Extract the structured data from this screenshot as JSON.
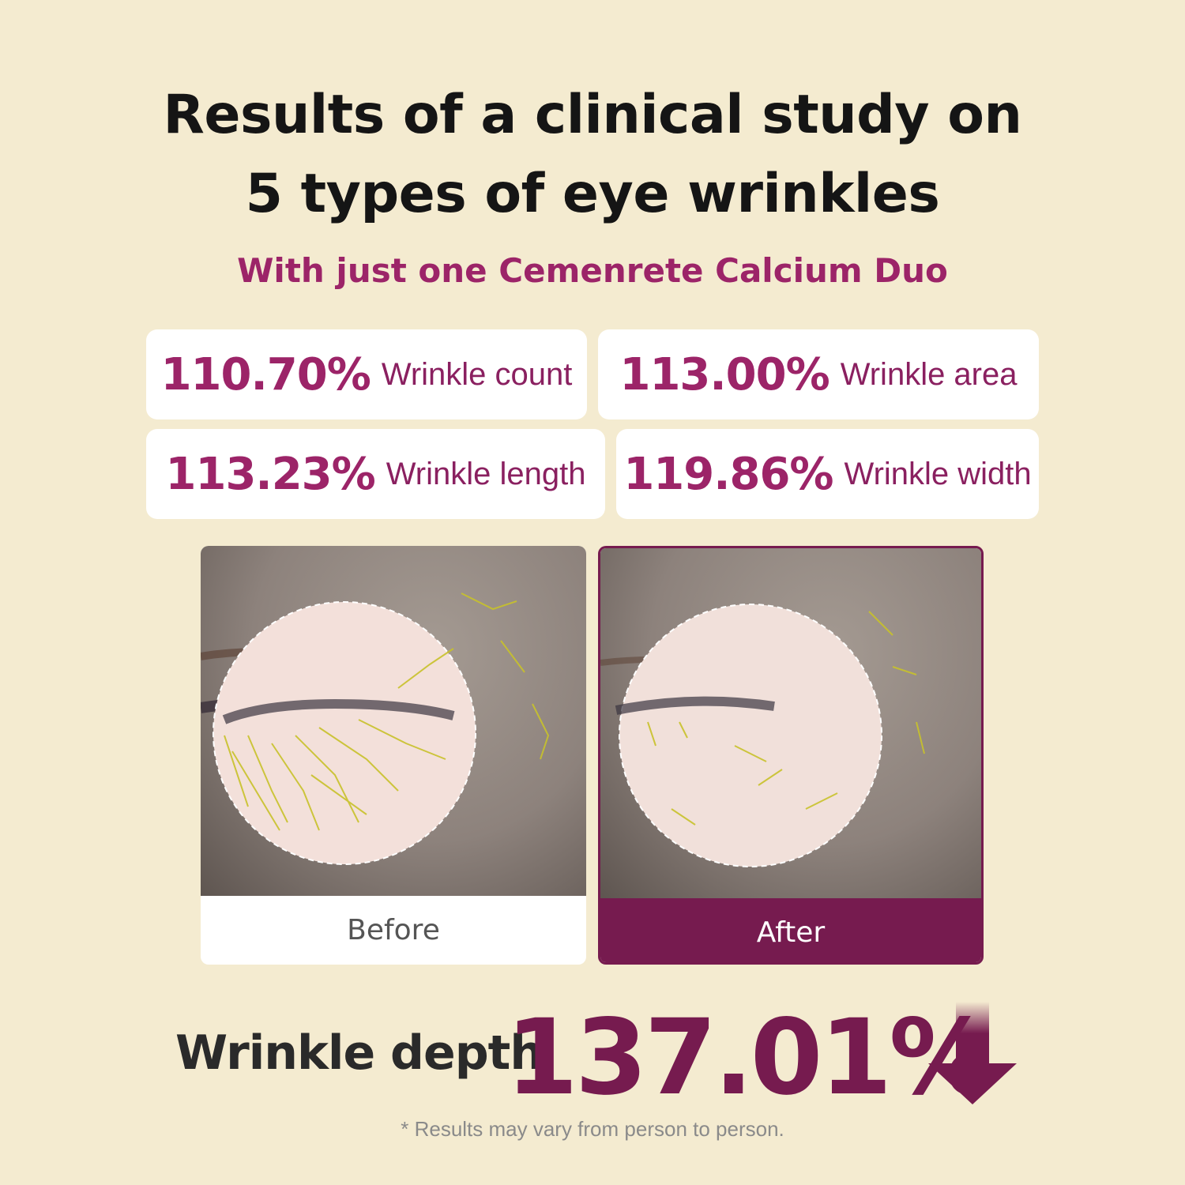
{
  "header": {
    "title_line1": "Results of a clinical study on",
    "title_line2": "5 types of eye wrinkles",
    "subtitle": "With just one Cemenrete Calcium Duo"
  },
  "stats": [
    {
      "value": "110.70%",
      "label": "Wrinkle count"
    },
    {
      "value": "113.00%",
      "label": "Wrinkle area"
    },
    {
      "value": "113.23%",
      "label": "Wrinkle length"
    },
    {
      "value": "119.86%",
      "label": "Wrinkle width"
    }
  ],
  "comparison": {
    "before_label": "Before",
    "after_label": "After"
  },
  "highlight": {
    "label": "Wrinkle depth",
    "value": "137.01%",
    "direction_icon": "arrow-down-icon"
  },
  "disclaimer": "* Results may vary from person to person.",
  "colors": {
    "background": "#f4ebd0",
    "accent": "#9c2468",
    "accent_dark": "#761b4f"
  }
}
